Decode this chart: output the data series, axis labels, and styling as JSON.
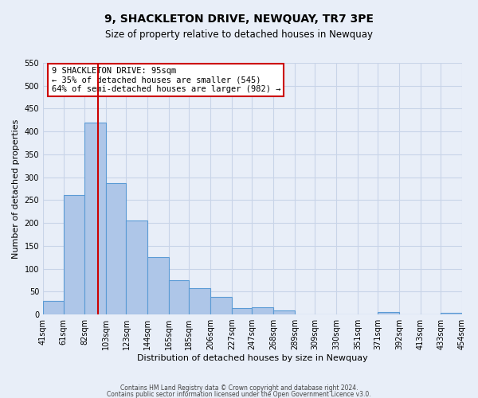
{
  "title": "9, SHACKLETON DRIVE, NEWQUAY, TR7 3PE",
  "subtitle": "Size of property relative to detached houses in Newquay",
  "xlabel": "Distribution of detached houses by size in Newquay",
  "ylabel": "Number of detached properties",
  "footer_line1": "Contains HM Land Registry data © Crown copyright and database right 2024.",
  "footer_line2": "Contains public sector information licensed under the Open Government Licence v3.0.",
  "bin_labels": [
    "41sqm",
    "61sqm",
    "82sqm",
    "103sqm",
    "123sqm",
    "144sqm",
    "165sqm",
    "185sqm",
    "206sqm",
    "227sqm",
    "247sqm",
    "268sqm",
    "289sqm",
    "309sqm",
    "330sqm",
    "351sqm",
    "371sqm",
    "392sqm",
    "413sqm",
    "433sqm",
    "454sqm"
  ],
  "bar_values": [
    30,
    262,
    420,
    287,
    205,
    125,
    75,
    57,
    38,
    14,
    15,
    8,
    0,
    0,
    0,
    0,
    5,
    0,
    0,
    4,
    0
  ],
  "bar_color": "#aec6e8",
  "bar_edge_color": "#5b9bd5",
  "property_line_x": 95,
  "property_size": 95,
  "bin_edges": [
    41,
    61,
    82,
    103,
    123,
    144,
    165,
    185,
    206,
    227,
    247,
    268,
    289,
    309,
    330,
    351,
    371,
    392,
    413,
    433,
    454
  ],
  "annotation_title": "9 SHACKLETON DRIVE: 95sqm",
  "annotation_line1": "← 35% of detached houses are smaller (545)",
  "annotation_line2": "64% of semi-detached houses are larger (982) →",
  "ylim": [
    0,
    550
  ],
  "yticks": [
    0,
    50,
    100,
    150,
    200,
    250,
    300,
    350,
    400,
    450,
    500,
    550
  ],
  "vline_color": "#cc0000",
  "annotation_box_color": "#ffffff",
  "annotation_box_edge": "#cc0000",
  "grid_color": "#c8d4e8",
  "background_color": "#e8eef8",
  "title_fontsize": 10,
  "subtitle_fontsize": 8.5,
  "axis_label_fontsize": 8,
  "tick_fontsize": 7,
  "footer_fontsize": 5.5,
  "annotation_fontsize": 7.5
}
